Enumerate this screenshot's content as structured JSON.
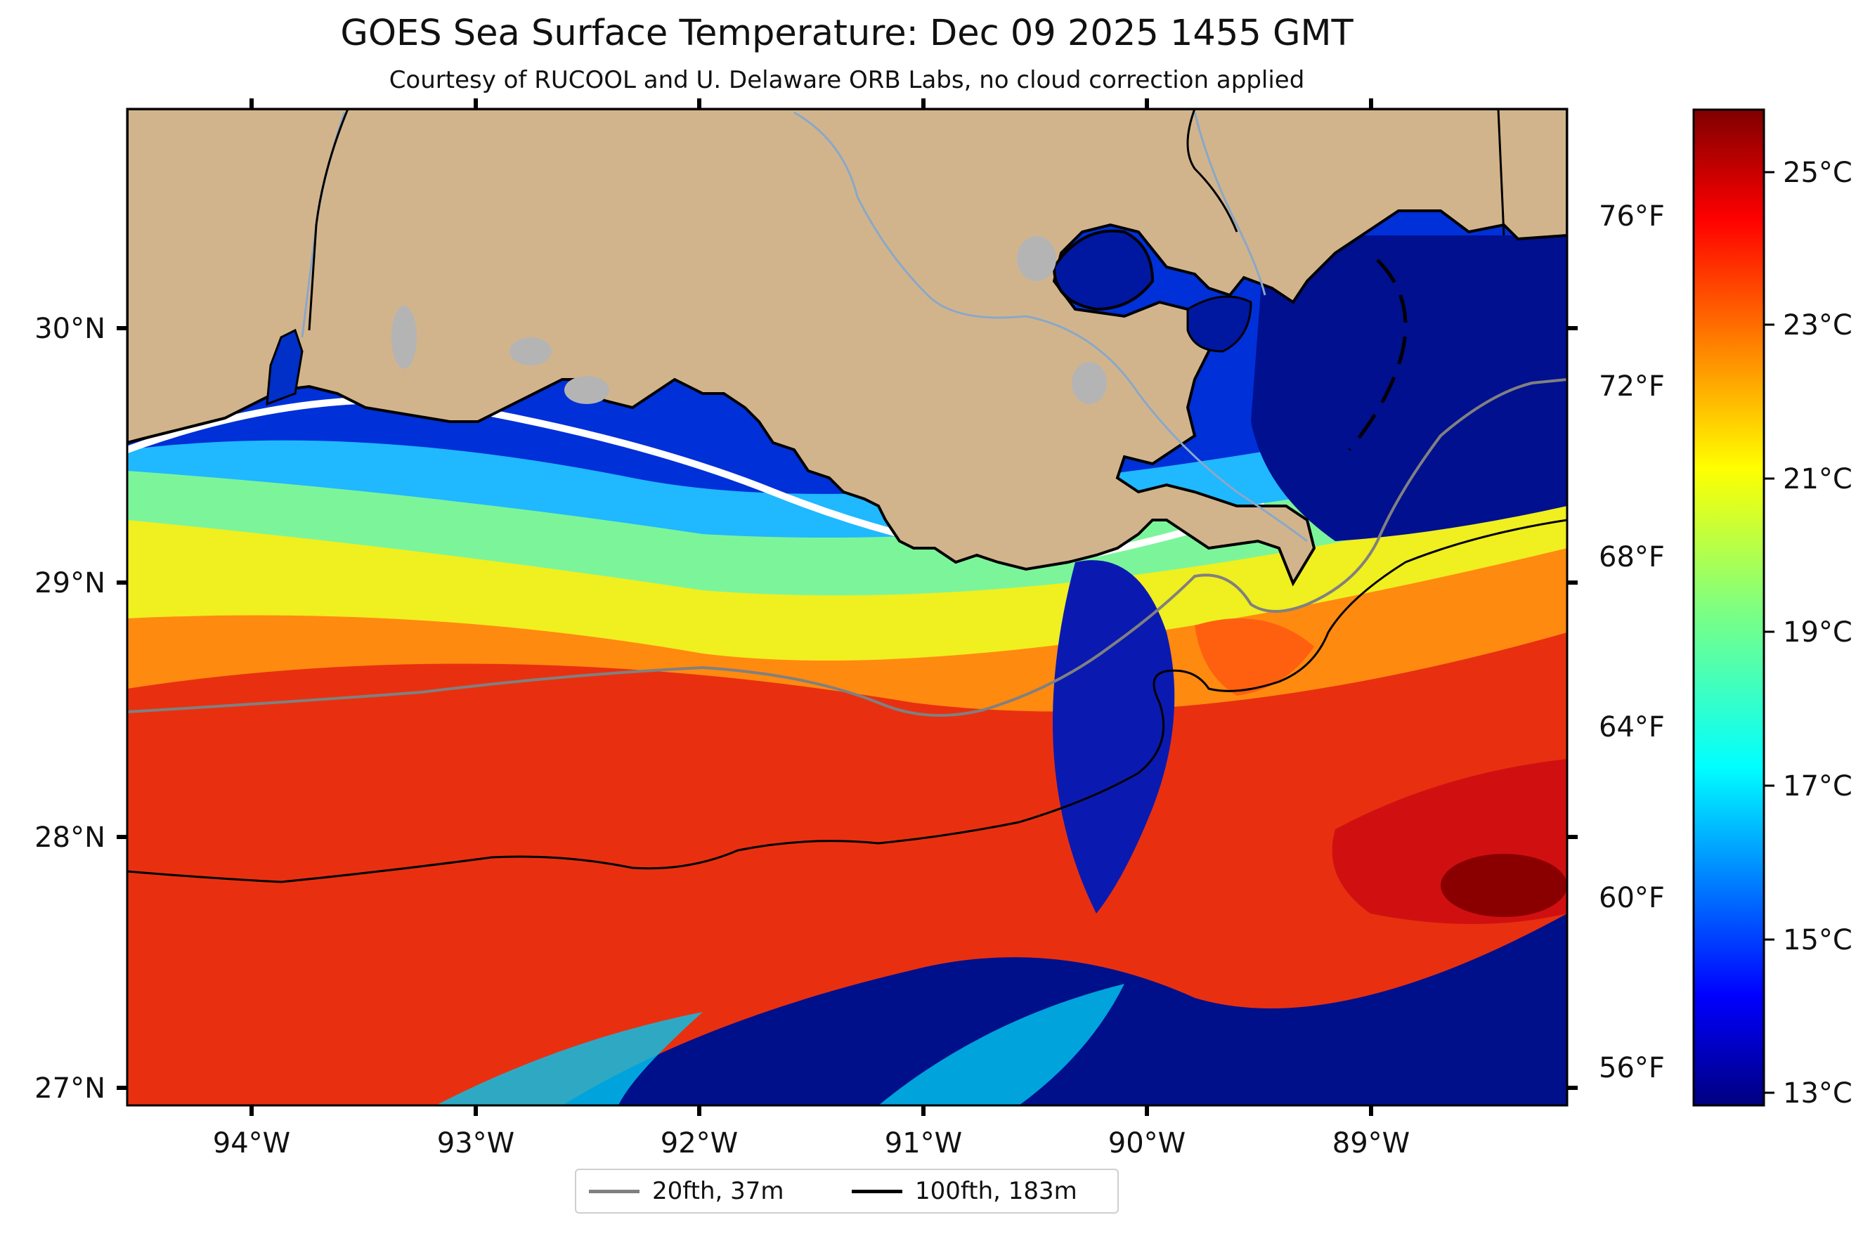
{
  "title": "GOES Sea Surface Temperature: Dec 09 2025 1455 GMT",
  "subtitle": "Courtesy of RUCOOL and U. Delaware ORB Labs, no cloud correction applied",
  "map": {
    "lon_ticks": [
      "94°W",
      "93°W",
      "92°W",
      "91°W",
      "90°W",
      "89°W"
    ],
    "lat_ticks": [
      "30°N",
      "29°N",
      "28°N",
      "27°N"
    ],
    "colors": {
      "land": "#d2b48c",
      "no_data": "#ffffff",
      "isobath_20": "#808080",
      "isobath_100": "#000000",
      "lakes": "#b4b4b4"
    }
  },
  "colorbar": {
    "celsius_ticks": [
      "25°C",
      "23°C",
      "21°C",
      "19°C",
      "17°C",
      "15°C",
      "13°C"
    ],
    "fahrenheit_ticks": [
      "76°F",
      "72°F",
      "68°F",
      "64°F",
      "60°F",
      "56°F"
    ],
    "colormap": "jet",
    "range_c": [
      12.8,
      26.0
    ]
  },
  "legend": {
    "items": [
      {
        "label": "20fth, 37m",
        "color": "#808080"
      },
      {
        "label": "100fth, 183m",
        "color": "#000000"
      }
    ]
  }
}
